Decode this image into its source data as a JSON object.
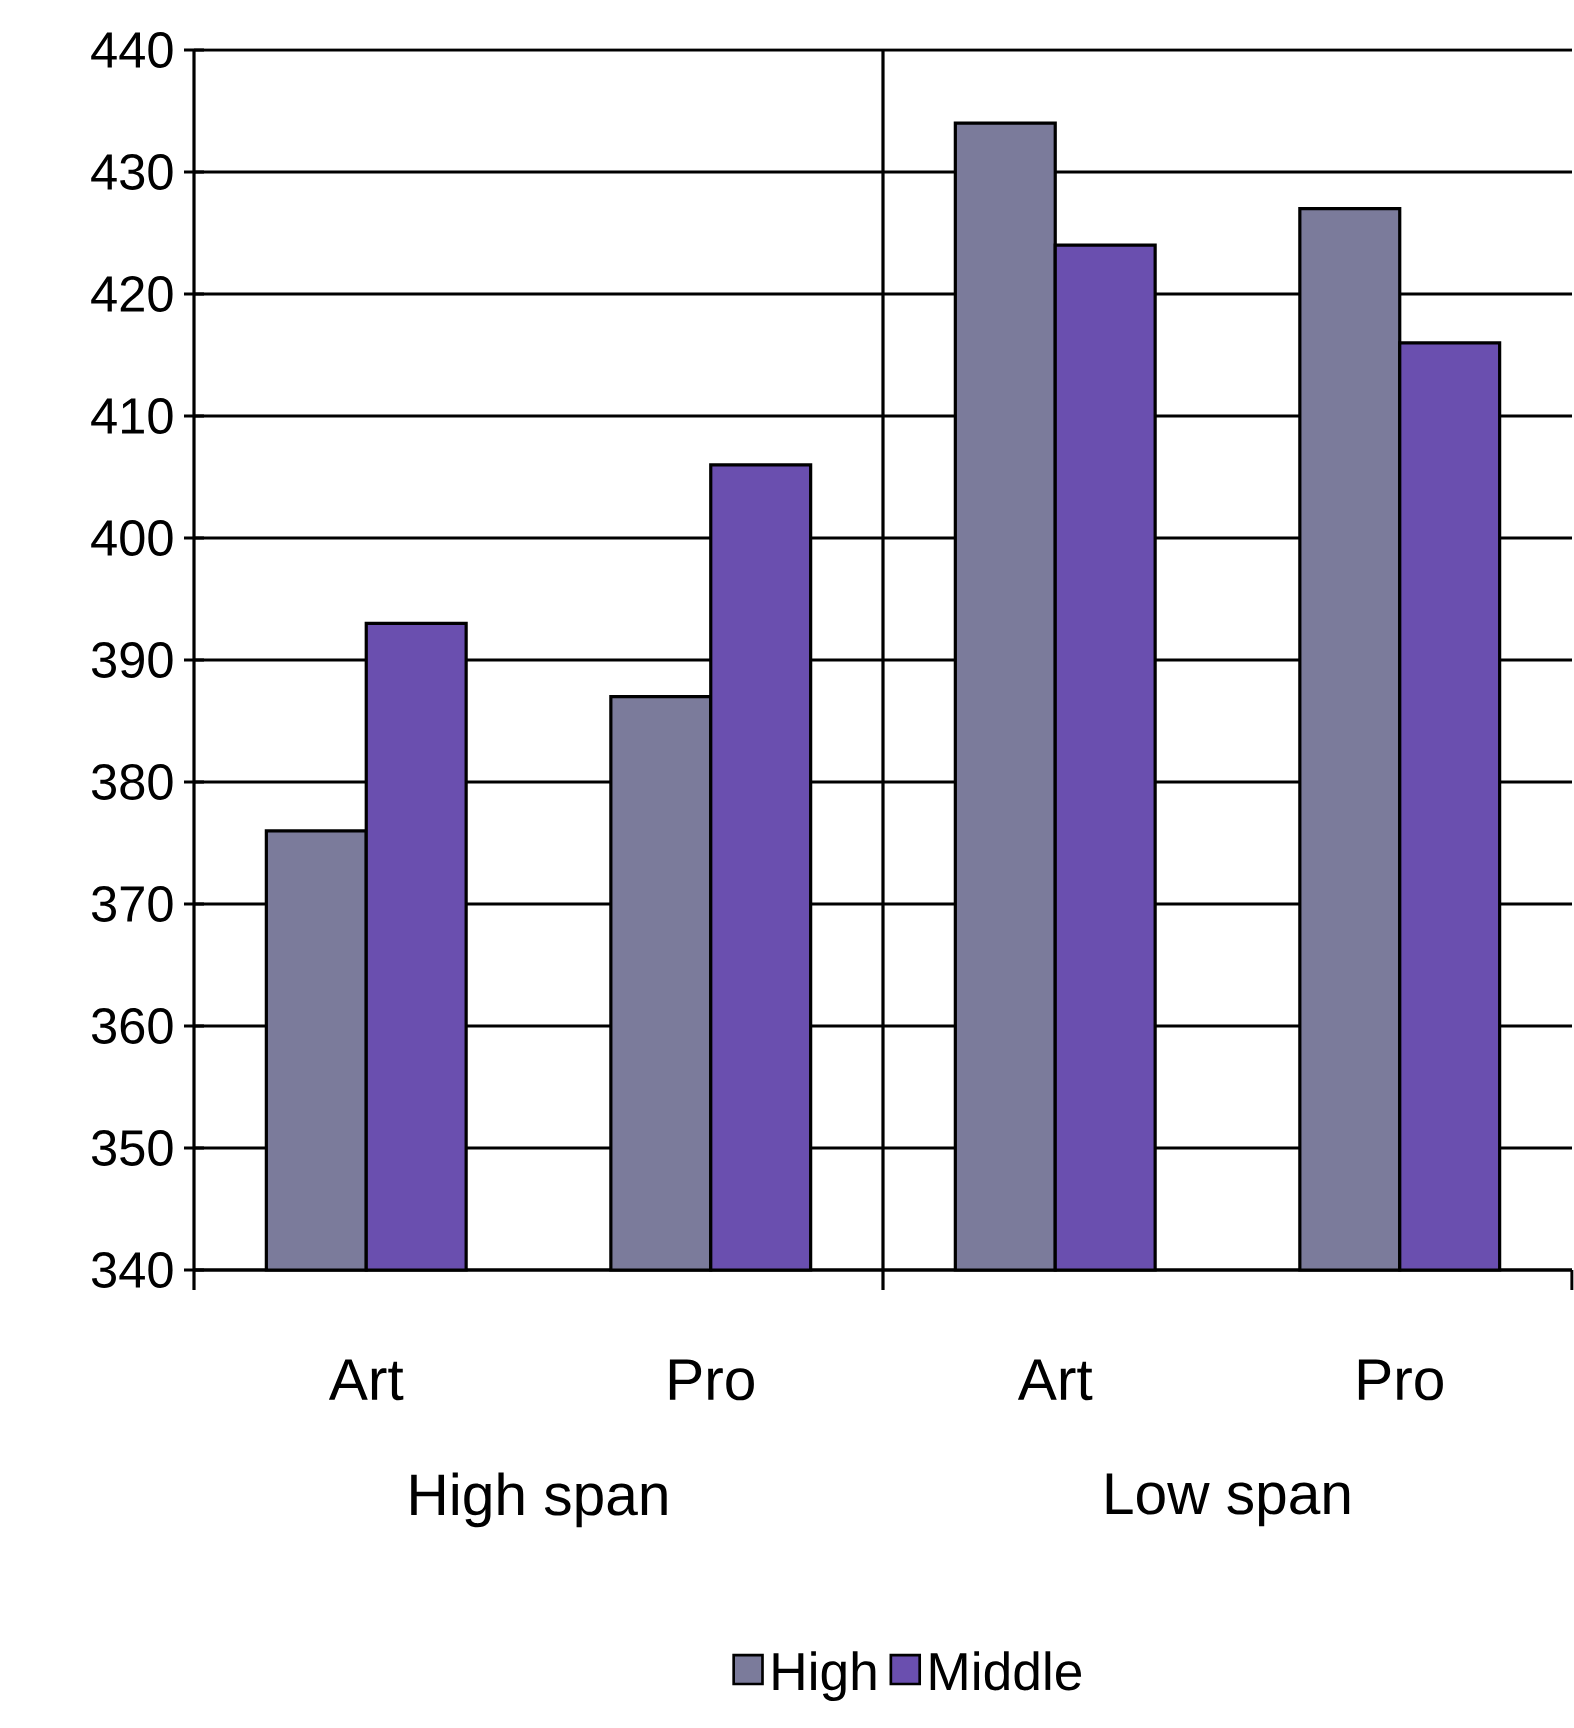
{
  "chart_data": {
    "type": "bar",
    "categories": [
      "Art",
      "Pro",
      "Art",
      "Pro"
    ],
    "series": [
      {
        "name": "High",
        "color": "#7b7b9b",
        "values": [
          376,
          387,
          434,
          427
        ]
      },
      {
        "name": "Middle",
        "color": "#6a4faf",
        "values": [
          393,
          406,
          424,
          416
        ]
      }
    ],
    "annotations": [
      "High span",
      "Low span"
    ],
    "ylim": [
      340,
      440
    ],
    "yticks": [
      340,
      350,
      360,
      370,
      380,
      390,
      400,
      410,
      420,
      430,
      440
    ],
    "grid": "y",
    "legend": "bottom"
  }
}
